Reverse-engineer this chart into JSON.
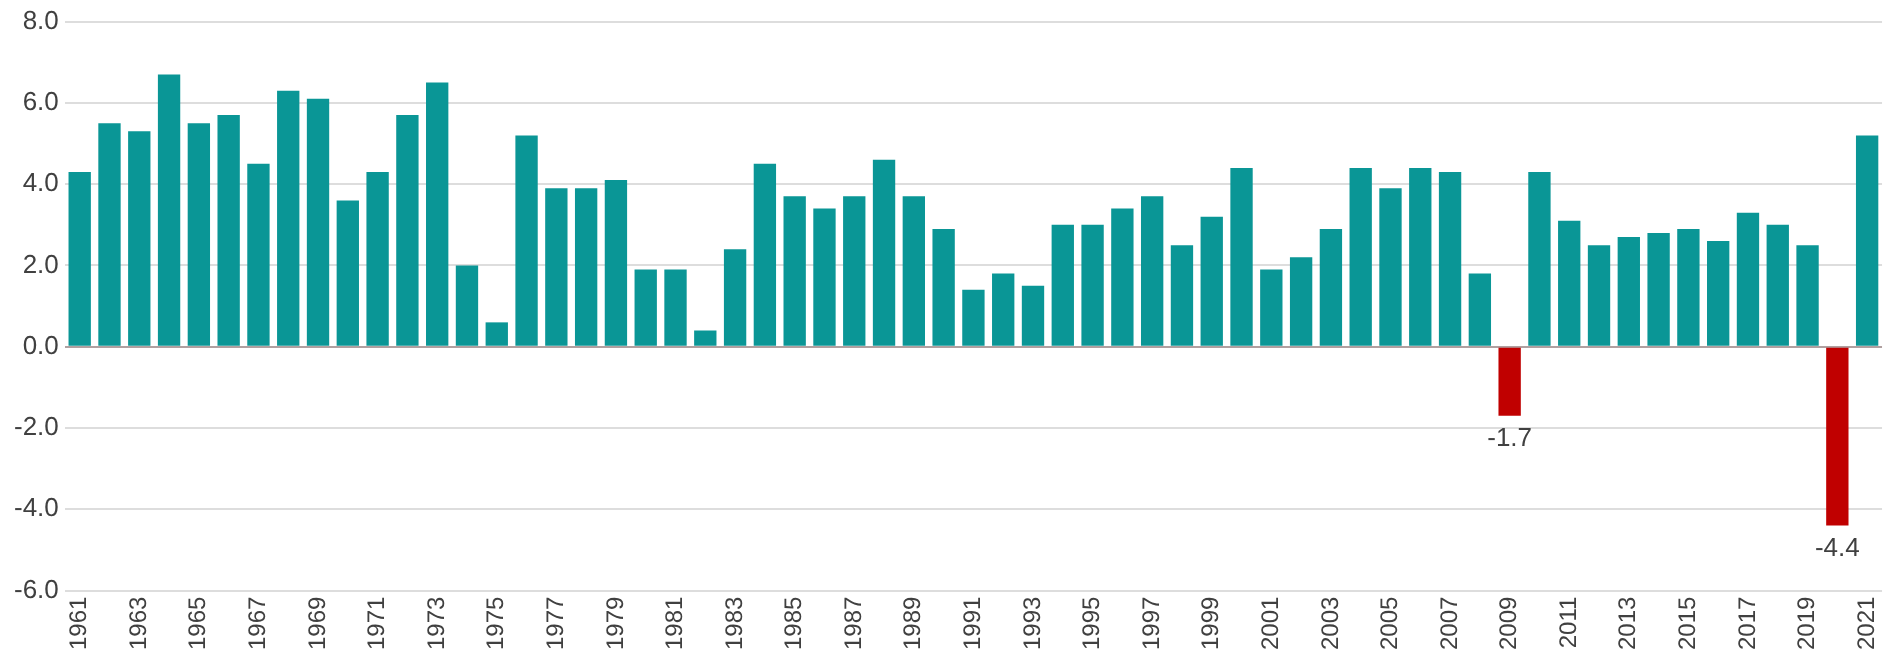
{
  "chart_data": {
    "type": "bar",
    "categories": [
      "1961",
      null,
      "1963",
      null,
      "1965",
      null,
      "1967",
      null,
      "1969",
      null,
      "1971",
      null,
      "1973",
      null,
      "1975",
      null,
      "1977",
      null,
      "1979",
      null,
      "1981",
      null,
      "1983",
      null,
      "1985",
      null,
      "1987",
      null,
      "1989",
      null,
      "1991",
      null,
      "1993",
      null,
      "1995",
      null,
      "1997",
      null,
      "1999",
      null,
      "2001",
      null,
      "2003",
      null,
      "2005",
      null,
      "2007",
      null,
      "2009",
      null,
      "2011",
      null,
      "2013",
      null,
      "2015",
      null,
      "2017",
      null,
      "2019",
      null,
      "2021"
    ],
    "values": [
      4.3,
      5.5,
      5.3,
      6.7,
      5.5,
      5.7,
      4.5,
      6.3,
      6.1,
      3.6,
      4.3,
      5.7,
      6.5,
      2.0,
      0.6,
      5.2,
      3.9,
      3.9,
      4.1,
      1.9,
      1.9,
      0.4,
      2.4,
      4.5,
      3.7,
      3.4,
      3.7,
      4.6,
      3.7,
      2.9,
      1.4,
      1.8,
      1.5,
      3.0,
      3.0,
      3.4,
      3.7,
      2.5,
      3.2,
      4.4,
      1.9,
      2.2,
      2.9,
      4.4,
      3.9,
      4.4,
      4.3,
      1.8,
      -1.7,
      4.3,
      3.1,
      2.5,
      2.7,
      2.8,
      2.9,
      2.6,
      3.3,
      3.0,
      2.5,
      -4.4,
      5.2
    ],
    "colors": [
      "#0a9696",
      "#0a9696",
      "#0a9696",
      "#0a9696",
      "#0a9696",
      "#0a9696",
      "#0a9696",
      "#0a9696",
      "#0a9696",
      "#0a9696",
      "#0a9696",
      "#0a9696",
      "#0a9696",
      "#0a9696",
      "#0a9696",
      "#0a9696",
      "#0a9696",
      "#0a9696",
      "#0a9696",
      "#0a9696",
      "#0a9696",
      "#0a9696",
      "#0a9696",
      "#0a9696",
      "#0a9696",
      "#0a9696",
      "#0a9696",
      "#0a9696",
      "#0a9696",
      "#0a9696",
      "#0a9696",
      "#0a9696",
      "#0a9696",
      "#0a9696",
      "#0a9696",
      "#0a9696",
      "#0a9696",
      "#0a9696",
      "#0a9696",
      "#0a9696",
      "#0a9696",
      "#0a9696",
      "#0a9696",
      "#0a9696",
      "#0a9696",
      "#0a9696",
      "#0a9696",
      "#0a9696",
      "#c00000",
      "#0a9696",
      "#0a9696",
      "#0a9696",
      "#0a9696",
      "#0a9696",
      "#0a9696",
      "#0a9696",
      "#0a9696",
      "#0a9696",
      "#0a9696",
      "#c00000",
      "#0a9696"
    ],
    "value_labels": [
      null,
      null,
      null,
      null,
      null,
      null,
      null,
      null,
      null,
      null,
      null,
      null,
      null,
      null,
      null,
      null,
      null,
      null,
      null,
      null,
      null,
      null,
      null,
      null,
      null,
      null,
      null,
      null,
      null,
      null,
      null,
      null,
      null,
      null,
      null,
      null,
      null,
      null,
      null,
      null,
      null,
      null,
      null,
      null,
      null,
      null,
      null,
      null,
      "-1.7",
      null,
      null,
      null,
      null,
      null,
      null,
      null,
      null,
      null,
      null,
      "-4.4",
      null
    ],
    "ylim": [
      -6,
      8
    ],
    "yticks": [
      {
        "value": -6,
        "label": "-6.0"
      },
      {
        "value": -4,
        "label": "-4.0"
      },
      {
        "value": -2,
        "label": "-2.0"
      },
      {
        "value": 0,
        "label": "0.0"
      },
      {
        "value": 2,
        "label": "2.0"
      },
      {
        "value": 4,
        "label": "4.0"
      },
      {
        "value": 6,
        "label": "6.0"
      },
      {
        "value": 8,
        "label": "8.0"
      }
    ],
    "grid": "y",
    "legend": false
  }
}
